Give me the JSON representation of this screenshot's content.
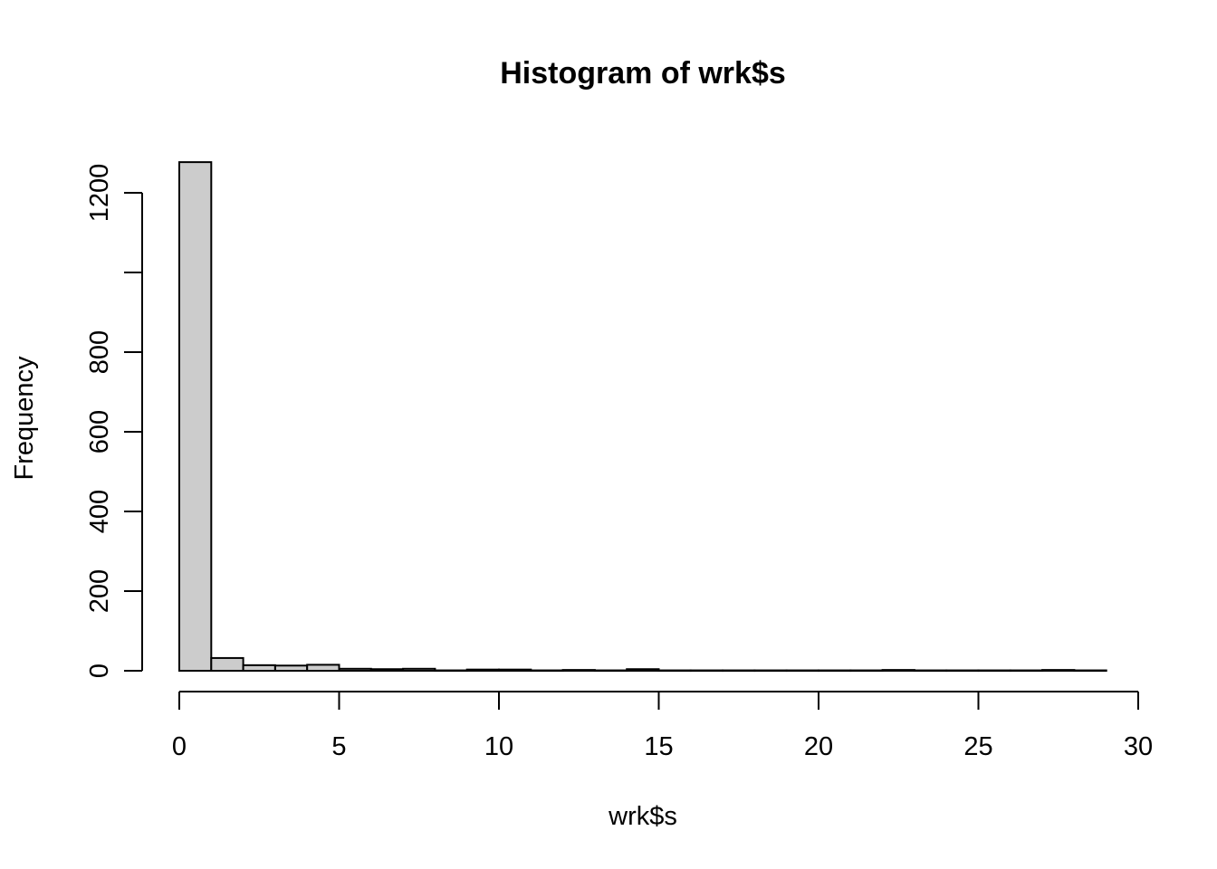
{
  "chart_data": {
    "type": "bar",
    "title": "Histogram of wrk$s",
    "xlabel": "wrk$s",
    "ylabel": "Frequency",
    "bin_width": 1,
    "bin_starts": [
      0,
      1,
      2,
      3,
      4,
      5,
      6,
      7,
      8,
      9,
      10,
      11,
      12,
      13,
      14,
      15,
      16,
      17,
      18,
      19,
      20,
      21,
      22,
      23,
      24,
      25,
      26,
      27,
      28
    ],
    "values": [
      1277,
      32,
      14,
      13,
      15,
      5,
      4,
      5,
      1,
      3,
      3,
      1,
      2,
      1,
      4,
      1,
      1,
      1,
      1,
      1,
      1,
      1,
      2,
      1,
      1,
      1,
      1,
      2,
      1
    ],
    "xlim": [
      0,
      30
    ],
    "ylim": [
      0,
      1277
    ],
    "x_ticks": [
      "0",
      "5",
      "10",
      "15",
      "20",
      "25",
      "30"
    ],
    "y_ticks": [
      "0",
      "200",
      "400",
      "600",
      "800",
      "",
      "1200"
    ],
    "bar_color": "#cccccc",
    "grid": false,
    "legend": "none"
  }
}
